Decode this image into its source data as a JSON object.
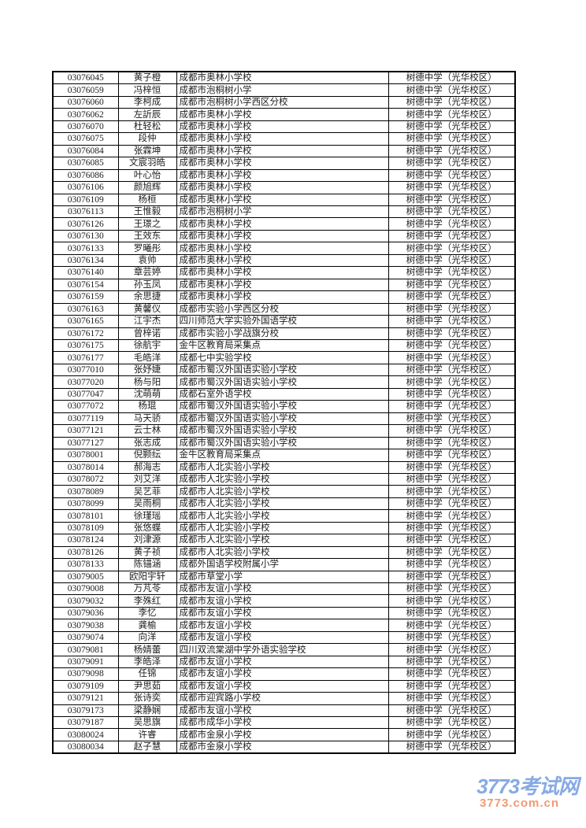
{
  "page": {
    "background": "#ffffff"
  },
  "table": {
    "rows": [
      [
        "03076045",
        "黄子橙",
        "成都市奥林小学校",
        "树德中学（光华校区）"
      ],
      [
        "03076059",
        "冯梓恒",
        "成都市泡桐树小学",
        "树德中学（光华校区）"
      ],
      [
        "03076060",
        "李柯成",
        "成都市泡桐树小学西区分校",
        "树德中学（光华校区）"
      ],
      [
        "03076062",
        "左訢辰",
        "成都市奥林小学校",
        "树德中学（光华校区）"
      ],
      [
        "03076070",
        "杜轻松",
        "成都市奥林小学校",
        "树德中学（光华校区）"
      ],
      [
        "03076075",
        "段仲",
        "成都市奥林小学校",
        "树德中学（光华校区）"
      ],
      [
        "03076084",
        "张霖坤",
        "成都市奥林小学校",
        "树德中学（光华校区）"
      ],
      [
        "03076085",
        "文宸羽皓",
        "成都市奥林小学校",
        "树德中学（光华校区）"
      ],
      [
        "03076086",
        "叶心怡",
        "成都市奥林小学校",
        "树德中学（光华校区）"
      ],
      [
        "03076106",
        "颜旭辉",
        "成都市奥林小学校",
        "树德中学（光华校区）"
      ],
      [
        "03076109",
        "杨桓",
        "成都市奥林小学校",
        "树德中学（光华校区）"
      ],
      [
        "03076113",
        "王惟毅",
        "成都市泡桐树小学",
        "树德中学（光华校区）"
      ],
      [
        "03076126",
        "王璟之",
        "成都市奥林小学校",
        "树德中学（光华校区）"
      ],
      [
        "03076130",
        "王效东",
        "成都市奥林小学校",
        "树德中学（光华校区）"
      ],
      [
        "03076133",
        "罗曦彤",
        "成都市奥林小学校",
        "树德中学（光华校区）"
      ],
      [
        "03076134",
        "袁帅",
        "成都市奥林小学校",
        "树德中学（光华校区）"
      ],
      [
        "03076140",
        "章芸婷",
        "成都市奥林小学校",
        "树德中学（光华校区）"
      ],
      [
        "03076154",
        "孙玉凤",
        "成都市奥林小学校",
        "树德中学（光华校区）"
      ],
      [
        "03076159",
        "余思捷",
        "成都市奥林小学校",
        "树德中学（光华校区）"
      ],
      [
        "03076163",
        "黄馨仪",
        "成都市实验小学西区分校",
        "树德中学（光华校区）"
      ],
      [
        "03076165",
        "江宇杰",
        "四川师范大学实验外国语学校",
        "树德中学（光华校区）"
      ],
      [
        "03076172",
        "曾梓诺",
        "成都市实验小学战旗分校",
        "树德中学（光华校区）"
      ],
      [
        "03076175",
        "徐航宇",
        "金牛区教育局采集点",
        "树德中学（光华校区）"
      ],
      [
        "03076177",
        "毛皓洋",
        "成都七中实验学校",
        "树德中学（光华校区）"
      ],
      [
        "03077010",
        "张妤婕",
        "成都市蜀汉外国语实验小学校",
        "树德中学（光华校区）"
      ],
      [
        "03077020",
        "杨与阳",
        "成都市蜀汉外国语实验小学校",
        "树德中学（光华校区）"
      ],
      [
        "03077047",
        "沈萌萌",
        "成都石室外语学校",
        "树德中学（光华校区）"
      ],
      [
        "03077072",
        "杨琨",
        "成都市蜀汉外国语实验小学校",
        "树德中学（光华校区）"
      ],
      [
        "03077119",
        "马天骄",
        "成都市蜀汉外国语实验小学校",
        "树德中学（光华校区）"
      ],
      [
        "03077121",
        "云士林",
        "成都市蜀汉外国语实验小学校",
        "树德中学（光华校区）"
      ],
      [
        "03077127",
        "张志成",
        "成都市蜀汉外国语实验小学校",
        "树德中学（光华校区）"
      ],
      [
        "03078001",
        "倪颢纭",
        "金牛区教育局采集点",
        "树德中学（光华校区）"
      ],
      [
        "03078014",
        "郝海志",
        "成都市人北实验小学校",
        "树德中学（光华校区）"
      ],
      [
        "03078072",
        "刘艾洋",
        "成都市人北实验小学校",
        "树德中学（光华校区）"
      ],
      [
        "03078089",
        "吴艺菲",
        "成都市人北实验小学校",
        "树德中学（光华校区）"
      ],
      [
        "03078099",
        "吴雨桐",
        "成都市人北实验小学校",
        "树德中学（光华校区）"
      ],
      [
        "03078101",
        "徐瑾瑶",
        "成都市人北实验小学校",
        "树德中学（光华校区）"
      ],
      [
        "03078109",
        "张悠蝶",
        "成都市人北实验小学校",
        "树德中学（光华校区）"
      ],
      [
        "03078124",
        "刘津源",
        "成都市人北实验小学校",
        "树德中学（光华校区）"
      ],
      [
        "03078126",
        "黄子祯",
        "成都市人北实验小学校",
        "树德中学（光华校区）"
      ],
      [
        "03078133",
        "陈锚涵",
        "成都外国语学校附属小学",
        "树德中学（光华校区）"
      ],
      [
        "03079005",
        "欧阳宇轩",
        "成都市草堂小学",
        "树德中学（光华校区）"
      ],
      [
        "03079008",
        "万芃苓",
        "成都市友谊小学校",
        "树德中学（光华校区）"
      ],
      [
        "03079032",
        "李殊红",
        "成都市友谊小学校",
        "树德中学（光华校区）"
      ],
      [
        "03079036",
        "李忆",
        "成都市友谊小学校",
        "树德中学（光华校区）"
      ],
      [
        "03079038",
        "龚榆",
        "成都市友谊小学校",
        "树德中学（光华校区）"
      ],
      [
        "03079074",
        "向洋",
        "成都市友谊小学校",
        "树德中学（光华校区）"
      ],
      [
        "03079081",
        "杨婧蕾",
        "四川双流棠湖中学外语实验学校",
        "树德中学（光华校区）"
      ],
      [
        "03079091",
        "李皓泽",
        "成都市友谊小学校",
        "树德中学（光华校区）"
      ],
      [
        "03079098",
        "任锦",
        "成都市友谊小学校",
        "树德中学（光华校区）"
      ],
      [
        "03079109",
        "尹思茹",
        "成都市友谊小学校",
        "树德中学（光华校区）"
      ],
      [
        "03079121",
        "张诗奕",
        "成都市迎宾路小学校",
        "树德中学（光华校区）"
      ],
      [
        "03079173",
        "梁静娴",
        "成都市友谊小学校",
        "树德中学（光华校区）"
      ],
      [
        "03079187",
        "吴思旗",
        "成都市成华小学校",
        "树德中学（光华校区）"
      ],
      [
        "03080024",
        "许睿",
        "成都市金泉小学校",
        "树德中学（光华校区）"
      ],
      [
        "03080034",
        "赵子慧",
        "成都市金泉小学校",
        "树德中学（光华校区）"
      ]
    ]
  },
  "watermark": {
    "site_name": "3773考试网",
    "site_url": "3773.com.cn",
    "name_color": "#87aae4",
    "url_color": "#f09a75"
  }
}
